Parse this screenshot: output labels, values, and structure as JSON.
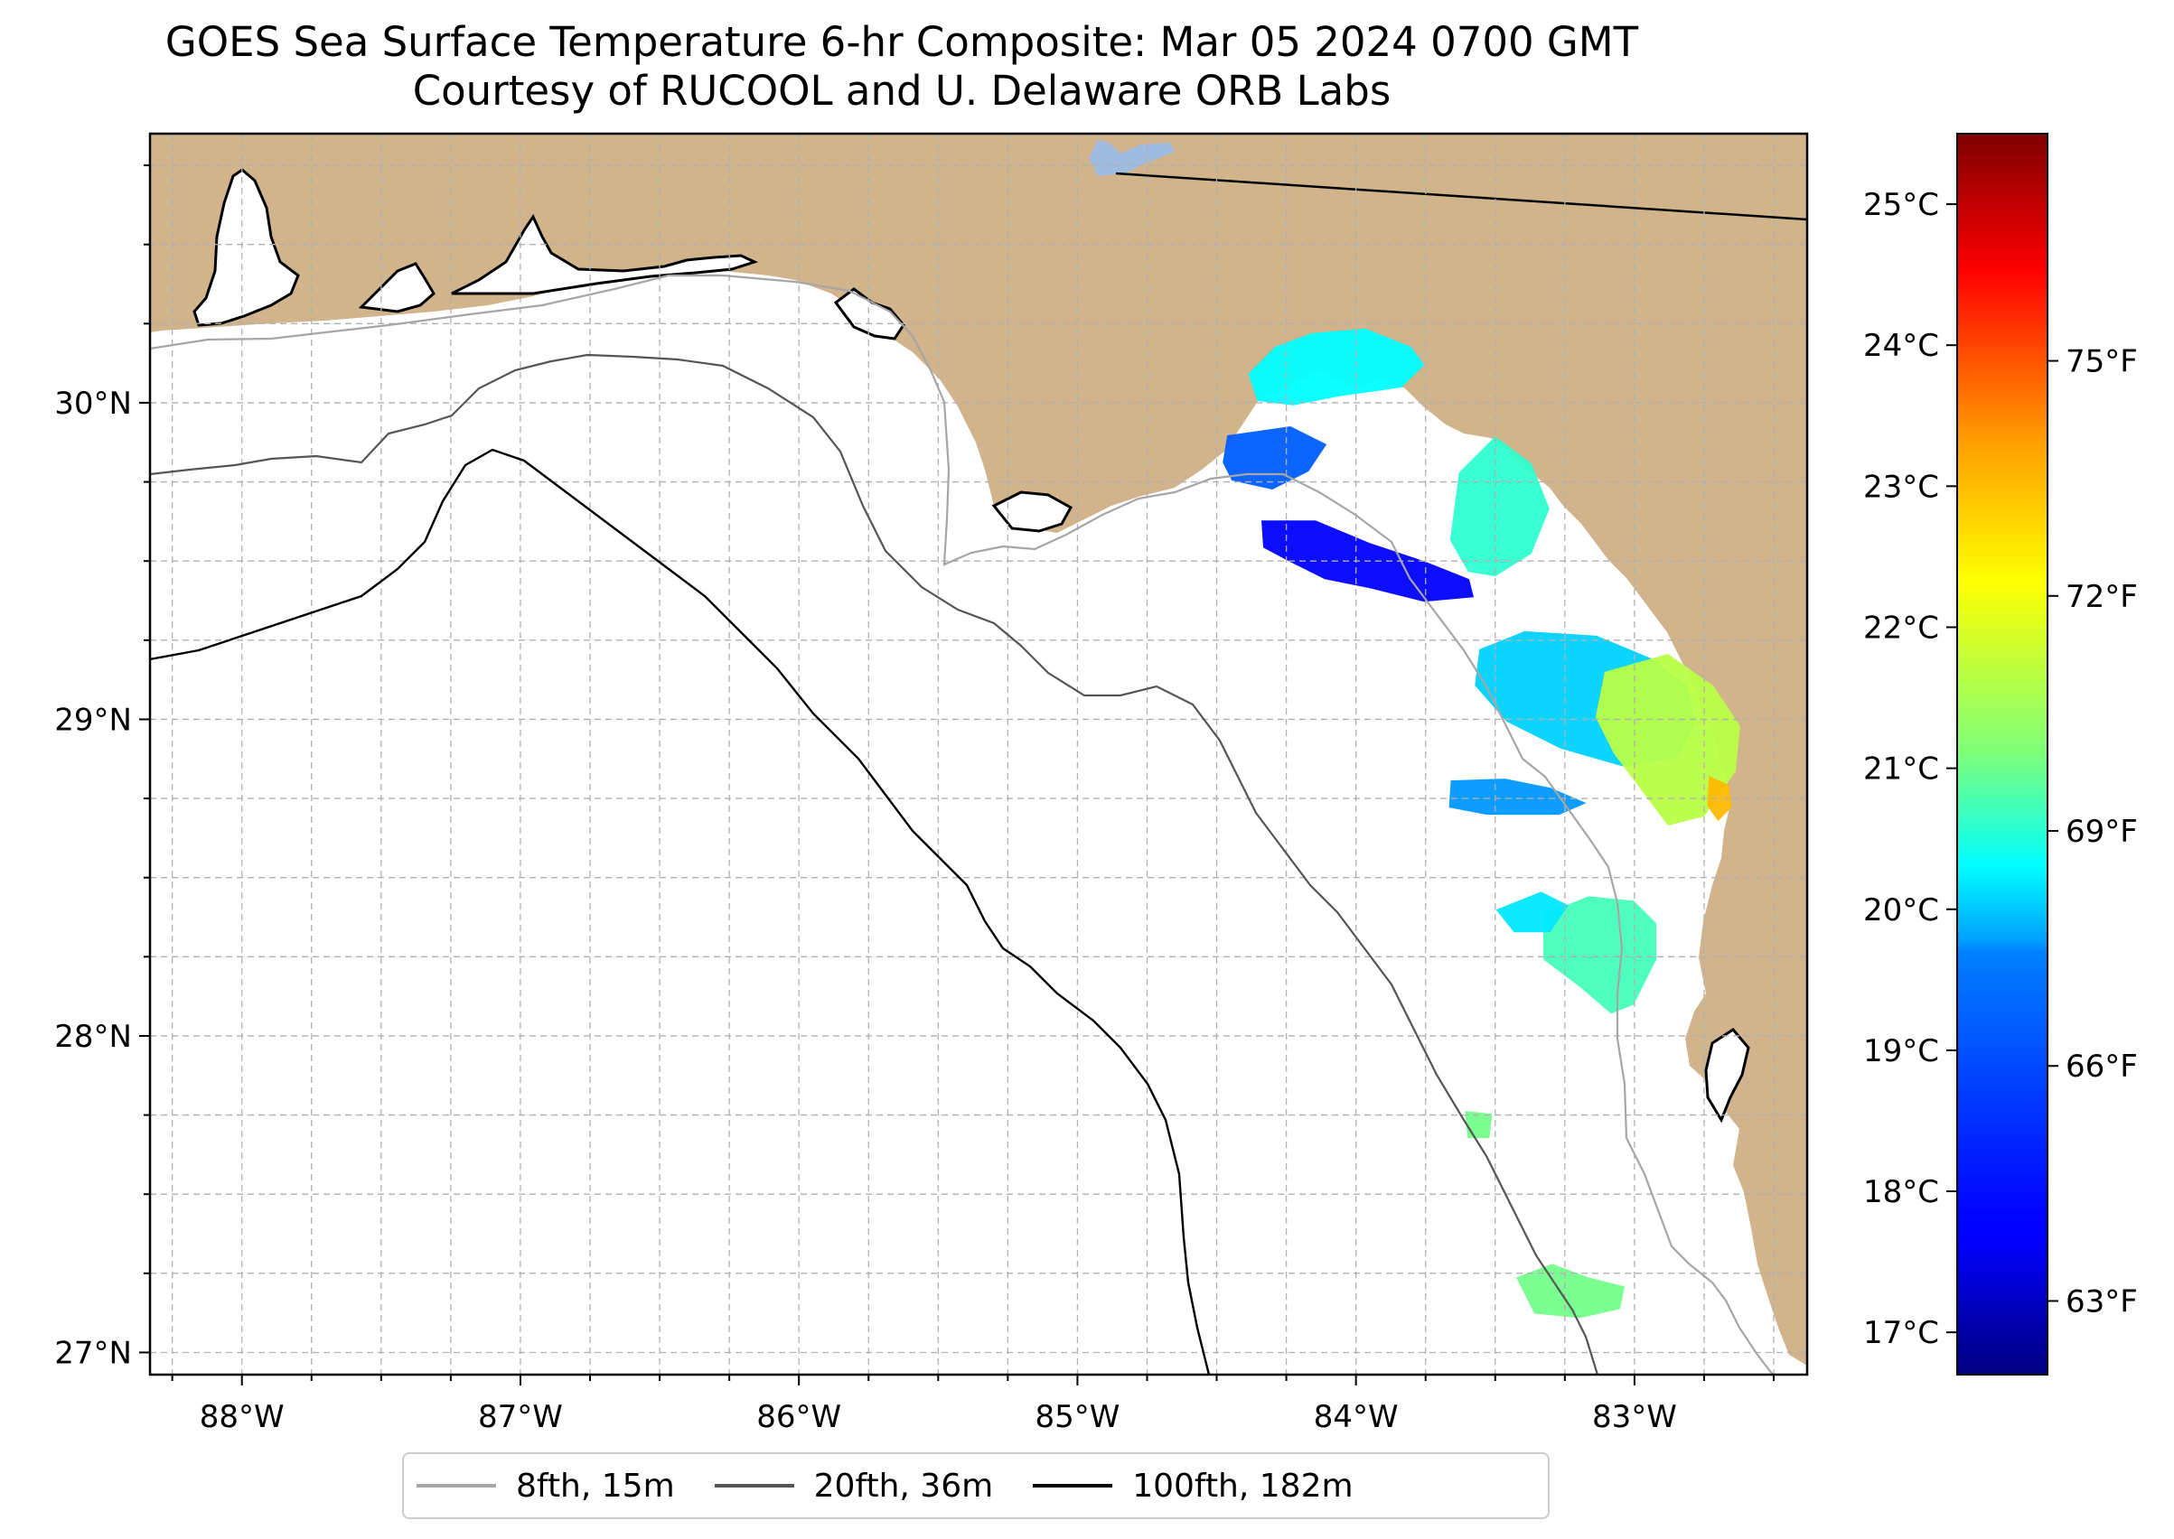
{
  "title": {
    "line1": "GOES Sea Surface Temperature 6-hr Composite: Mar 05 2024 0700 GMT",
    "line2": "Courtesy of RUCOOL and U. Delaware ORB Labs"
  },
  "map": {
    "extent": {
      "lon_min": -88.33,
      "lon_max": -82.38,
      "lat_min": 26.93,
      "lat_max": 30.85
    },
    "lon_ticks": [
      {
        "lon": -88,
        "label": "88°W"
      },
      {
        "lon": -87,
        "label": "87°W"
      },
      {
        "lon": -86,
        "label": "86°W"
      },
      {
        "lon": -85,
        "label": "85°W"
      },
      {
        "lon": -84,
        "label": "84°W"
      },
      {
        "lon": -83,
        "label": "83°W"
      }
    ],
    "lat_ticks": [
      {
        "lat": 30,
        "label": "30°N"
      },
      {
        "lat": 29,
        "label": "29°N"
      },
      {
        "lat": 28,
        "label": "28°N"
      },
      {
        "lat": 27,
        "label": "27°N"
      }
    ],
    "minor_step_deg": 0.25,
    "colors": {
      "land": "#d2b48c",
      "ocean": "#ffffff",
      "grid": "#b0b0b0",
      "coast": "#000000"
    }
  },
  "colorbar": {
    "colormap": "jet",
    "celsius_range": [
      16.7,
      25.5
    ],
    "celsius_ticks": [
      {
        "value": 17,
        "label": "17°C"
      },
      {
        "value": 18,
        "label": "18°C"
      },
      {
        "value": 19,
        "label": "19°C"
      },
      {
        "value": 20,
        "label": "20°C"
      },
      {
        "value": 21,
        "label": "21°C"
      },
      {
        "value": 22,
        "label": "22°C"
      },
      {
        "value": 23,
        "label": "23°C"
      },
      {
        "value": 24,
        "label": "24°C"
      },
      {
        "value": 25,
        "label": "25°C"
      }
    ],
    "fahrenheit_ticks": [
      {
        "value": 63,
        "label": "63°F"
      },
      {
        "value": 66,
        "label": "66°F"
      },
      {
        "value": 69,
        "label": "69°F"
      },
      {
        "value": 72,
        "label": "72°F"
      },
      {
        "value": 75,
        "label": "75°F"
      }
    ]
  },
  "sst_patches": [
    {
      "name": "apalachee-bay",
      "lon": -84.03,
      "lat": 30.02,
      "sst_c": 20.0
    },
    {
      "name": "apalachee-bay-west",
      "lon": -84.3,
      "lat": 29.84,
      "sst_c": 18.6
    },
    {
      "name": "offshore-cold-band",
      "lon": -84.08,
      "lat": 29.5,
      "sst_c": 17.8
    },
    {
      "name": "big-bend-north",
      "lon": -83.5,
      "lat": 29.58,
      "sst_c": 20.4
    },
    {
      "name": "big-bend-center",
      "lon": -83.2,
      "lat": 29.05,
      "sst_c": 19.6
    },
    {
      "name": "cedar-key-coast",
      "lon": -82.88,
      "lat": 28.95,
      "sst_c": 21.6
    },
    {
      "name": "cedar-key-warm",
      "lon": -82.7,
      "lat": 28.75,
      "sst_c": 22.8
    },
    {
      "name": "suwannee-offshore",
      "lon": -83.4,
      "lat": 28.75,
      "sst_c": 19.1
    },
    {
      "name": "crystal-river",
      "lon": -83.1,
      "lat": 28.27,
      "sst_c": 20.6
    },
    {
      "name": "crystal-river-north",
      "lon": -83.4,
      "lat": 28.37,
      "sst_c": 19.8
    },
    {
      "name": "tampa-offshore",
      "lon": -83.23,
      "lat": 27.18,
      "sst_c": 21.0
    },
    {
      "name": "west-florida-shelf",
      "lon": -83.56,
      "lat": 27.72,
      "sst_c": 21.0
    }
  ],
  "legend": {
    "items": [
      {
        "label": "8fth, 15m",
        "color": "#a6a6a6"
      },
      {
        "label": "20fth, 36m",
        "color": "#555555"
      },
      {
        "label": "100fth, 182m",
        "color": "#000000"
      }
    ]
  }
}
